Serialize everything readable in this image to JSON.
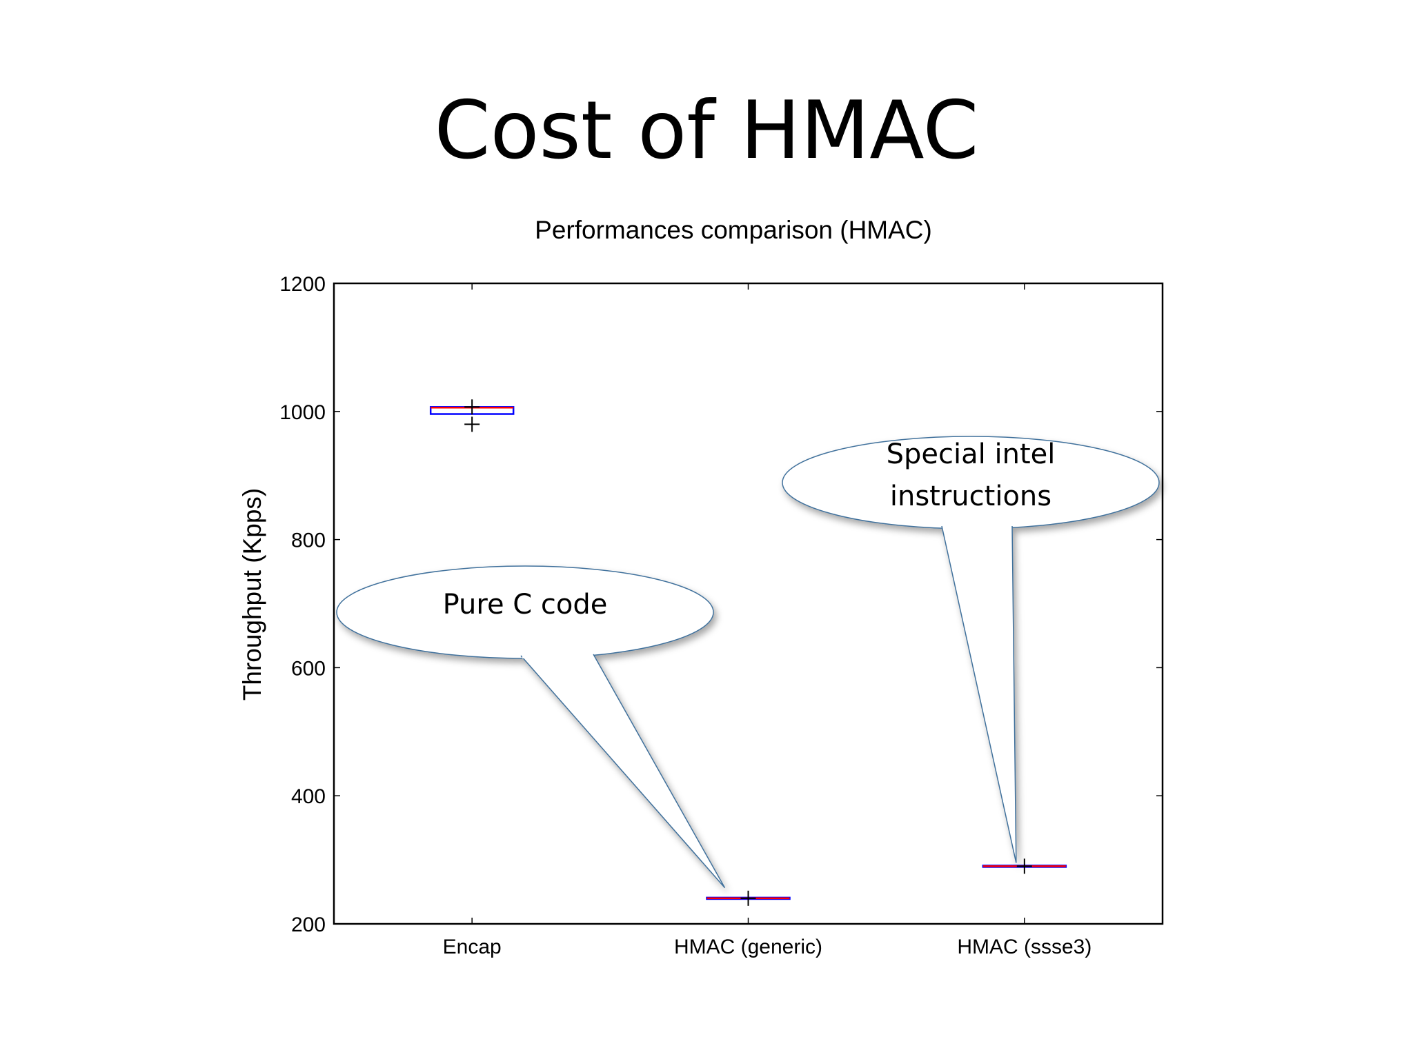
{
  "slide": {
    "title": "Cost of HMAC"
  },
  "chart_data": {
    "type": "box",
    "title": "Performances comparison (HMAC)",
    "xlabel": "",
    "ylabel": "Throughput (Kpps)",
    "ylim": [
      200,
      1200
    ],
    "yticks": [
      200,
      400,
      600,
      800,
      1000,
      1200
    ],
    "categories": [
      "Encap",
      "HMAC (generic)",
      "HMAC (ssse3)"
    ],
    "boxes": [
      {
        "q1": 996,
        "median": 1006,
        "q3": 1007,
        "whisker_low": 996,
        "whisker_high": 1007,
        "outliers": [
          1007,
          980
        ]
      },
      {
        "q1": 240,
        "median": 240,
        "q3": 241,
        "whisker_low": 240,
        "whisker_high": 241,
        "outliers": [
          240
        ]
      },
      {
        "q1": 290,
        "median": 290,
        "q3": 291,
        "whisker_low": 290,
        "whisker_high": 291,
        "outliers": [
          290
        ]
      }
    ],
    "colors": {
      "box": "#0000ff",
      "median": "#ff0000",
      "outlier": "#000000",
      "callout_stroke": "#41719c",
      "callout_fill": "#ffffff"
    },
    "annotations": [
      {
        "text_lines": [
          "Pure C code"
        ],
        "target_category": 1,
        "target_value": 265
      },
      {
        "text_lines": [
          "Special intel",
          "instructions"
        ],
        "target_category": 2,
        "target_value": 305
      }
    ]
  }
}
